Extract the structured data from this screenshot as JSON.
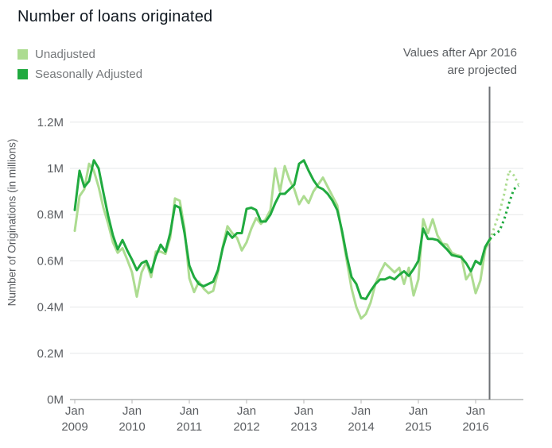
{
  "page_title": "Number of loans originated",
  "legend": {
    "items": [
      {
        "label": "Unadjusted",
        "color": "#addc91"
      },
      {
        "label": "Seasonally Adjusted",
        "color": "#20aa3f"
      }
    ]
  },
  "annotation": {
    "line1": "Values after Apr 2016",
    "line2": "are projected"
  },
  "colors": {
    "title_text": "#101820",
    "axis_text": "#5a5d61",
    "legend_text": "#75787b",
    "gridline": "#e6e7e8",
    "axis_line": "#b4b5b6",
    "tick_mark": "#b4b5b6",
    "projection_divider": "#6e7175",
    "unadjusted": "#addc91",
    "seasonally_adjusted": "#20aa3f",
    "background": "#ffffff"
  },
  "chart_data": {
    "type": "line",
    "title": "Number of loans originated",
    "xlabel": "",
    "ylabel": "Number of Originations (in millions)",
    "ylim": [
      0,
      1.2
    ],
    "grid": true,
    "legend_position": "top-left",
    "x_unit": "month",
    "x_start": "Jan 2009",
    "solid_end": "Apr 2016",
    "projected_end": "Oct 2016",
    "projection_note": "Values after Apr 2016 are projected",
    "ytick_values": [
      0,
      0.2,
      0.4,
      0.6,
      0.8,
      1.0,
      1.2
    ],
    "ytick_labels": [
      "0M",
      "0.2M",
      "0.4M",
      "0.6M",
      "0.8M",
      "1M",
      "1.2M"
    ],
    "xtick_labels": [
      [
        "Jan",
        "2009"
      ],
      [
        "Jan",
        "2010"
      ],
      [
        "Jan",
        "2011"
      ],
      [
        "Jan",
        "2012"
      ],
      [
        "Jan",
        "2013"
      ],
      [
        "Jan",
        "2014"
      ],
      [
        "Jan",
        "2015"
      ],
      [
        "Jan",
        "2016"
      ]
    ],
    "series": [
      {
        "name": "Unadjusted",
        "color": "#addc91",
        "style": "solid-then-dotted-after-Apr-2016",
        "values_millions": [
          0.73,
          0.88,
          0.91,
          1.02,
          0.99,
          0.92,
          0.83,
          0.76,
          0.68,
          0.635,
          0.655,
          0.605,
          0.55,
          0.445,
          0.55,
          0.595,
          0.53,
          0.64,
          0.64,
          0.63,
          0.7,
          0.87,
          0.86,
          0.74,
          0.525,
          0.465,
          0.51,
          0.48,
          0.46,
          0.47,
          0.55,
          0.66,
          0.75,
          0.72,
          0.7,
          0.645,
          0.68,
          0.74,
          0.785,
          0.76,
          0.78,
          0.82,
          1.0,
          0.9,
          1.01,
          0.95,
          0.91,
          0.845,
          0.88,
          0.85,
          0.9,
          0.93,
          0.96,
          0.92,
          0.88,
          0.84,
          0.72,
          0.6,
          0.48,
          0.4,
          0.35,
          0.37,
          0.42,
          0.5,
          0.55,
          0.59,
          0.57,
          0.55,
          0.57,
          0.5,
          0.57,
          0.45,
          0.52,
          0.78,
          0.72,
          0.78,
          0.71,
          0.675,
          0.67,
          0.635,
          0.625,
          0.62,
          0.52,
          0.55,
          0.46,
          0.515,
          0.65,
          0.69
        ],
        "projected_millions": [
          0.75,
          0.81,
          0.89,
          0.99,
          0.97,
          0.93
        ]
      },
      {
        "name": "Seasonally Adjusted",
        "color": "#20aa3f",
        "style": "solid-then-dotted-after-Apr-2016",
        "values_millions": [
          0.82,
          0.99,
          0.92,
          0.945,
          1.035,
          1.0,
          0.895,
          0.795,
          0.71,
          0.65,
          0.69,
          0.645,
          0.605,
          0.56,
          0.59,
          0.6,
          0.55,
          0.62,
          0.67,
          0.64,
          0.72,
          0.84,
          0.83,
          0.72,
          0.58,
          0.53,
          0.5,
          0.49,
          0.5,
          0.51,
          0.56,
          0.655,
          0.725,
          0.7,
          0.72,
          0.72,
          0.825,
          0.83,
          0.82,
          0.77,
          0.77,
          0.8,
          0.85,
          0.89,
          0.89,
          0.91,
          0.93,
          1.02,
          1.035,
          0.99,
          0.95,
          0.92,
          0.91,
          0.89,
          0.86,
          0.82,
          0.73,
          0.62,
          0.53,
          0.5,
          0.44,
          0.435,
          0.47,
          0.5,
          0.52,
          0.52,
          0.53,
          0.52,
          0.54,
          0.555,
          0.535,
          0.565,
          0.6,
          0.74,
          0.695,
          0.695,
          0.69,
          0.67,
          0.65,
          0.625,
          0.62,
          0.615,
          0.59,
          0.555,
          0.6,
          0.585,
          0.66,
          0.695
        ],
        "projected_millions": [
          0.715,
          0.73,
          0.78,
          0.85,
          0.91,
          0.925
        ]
      }
    ]
  }
}
